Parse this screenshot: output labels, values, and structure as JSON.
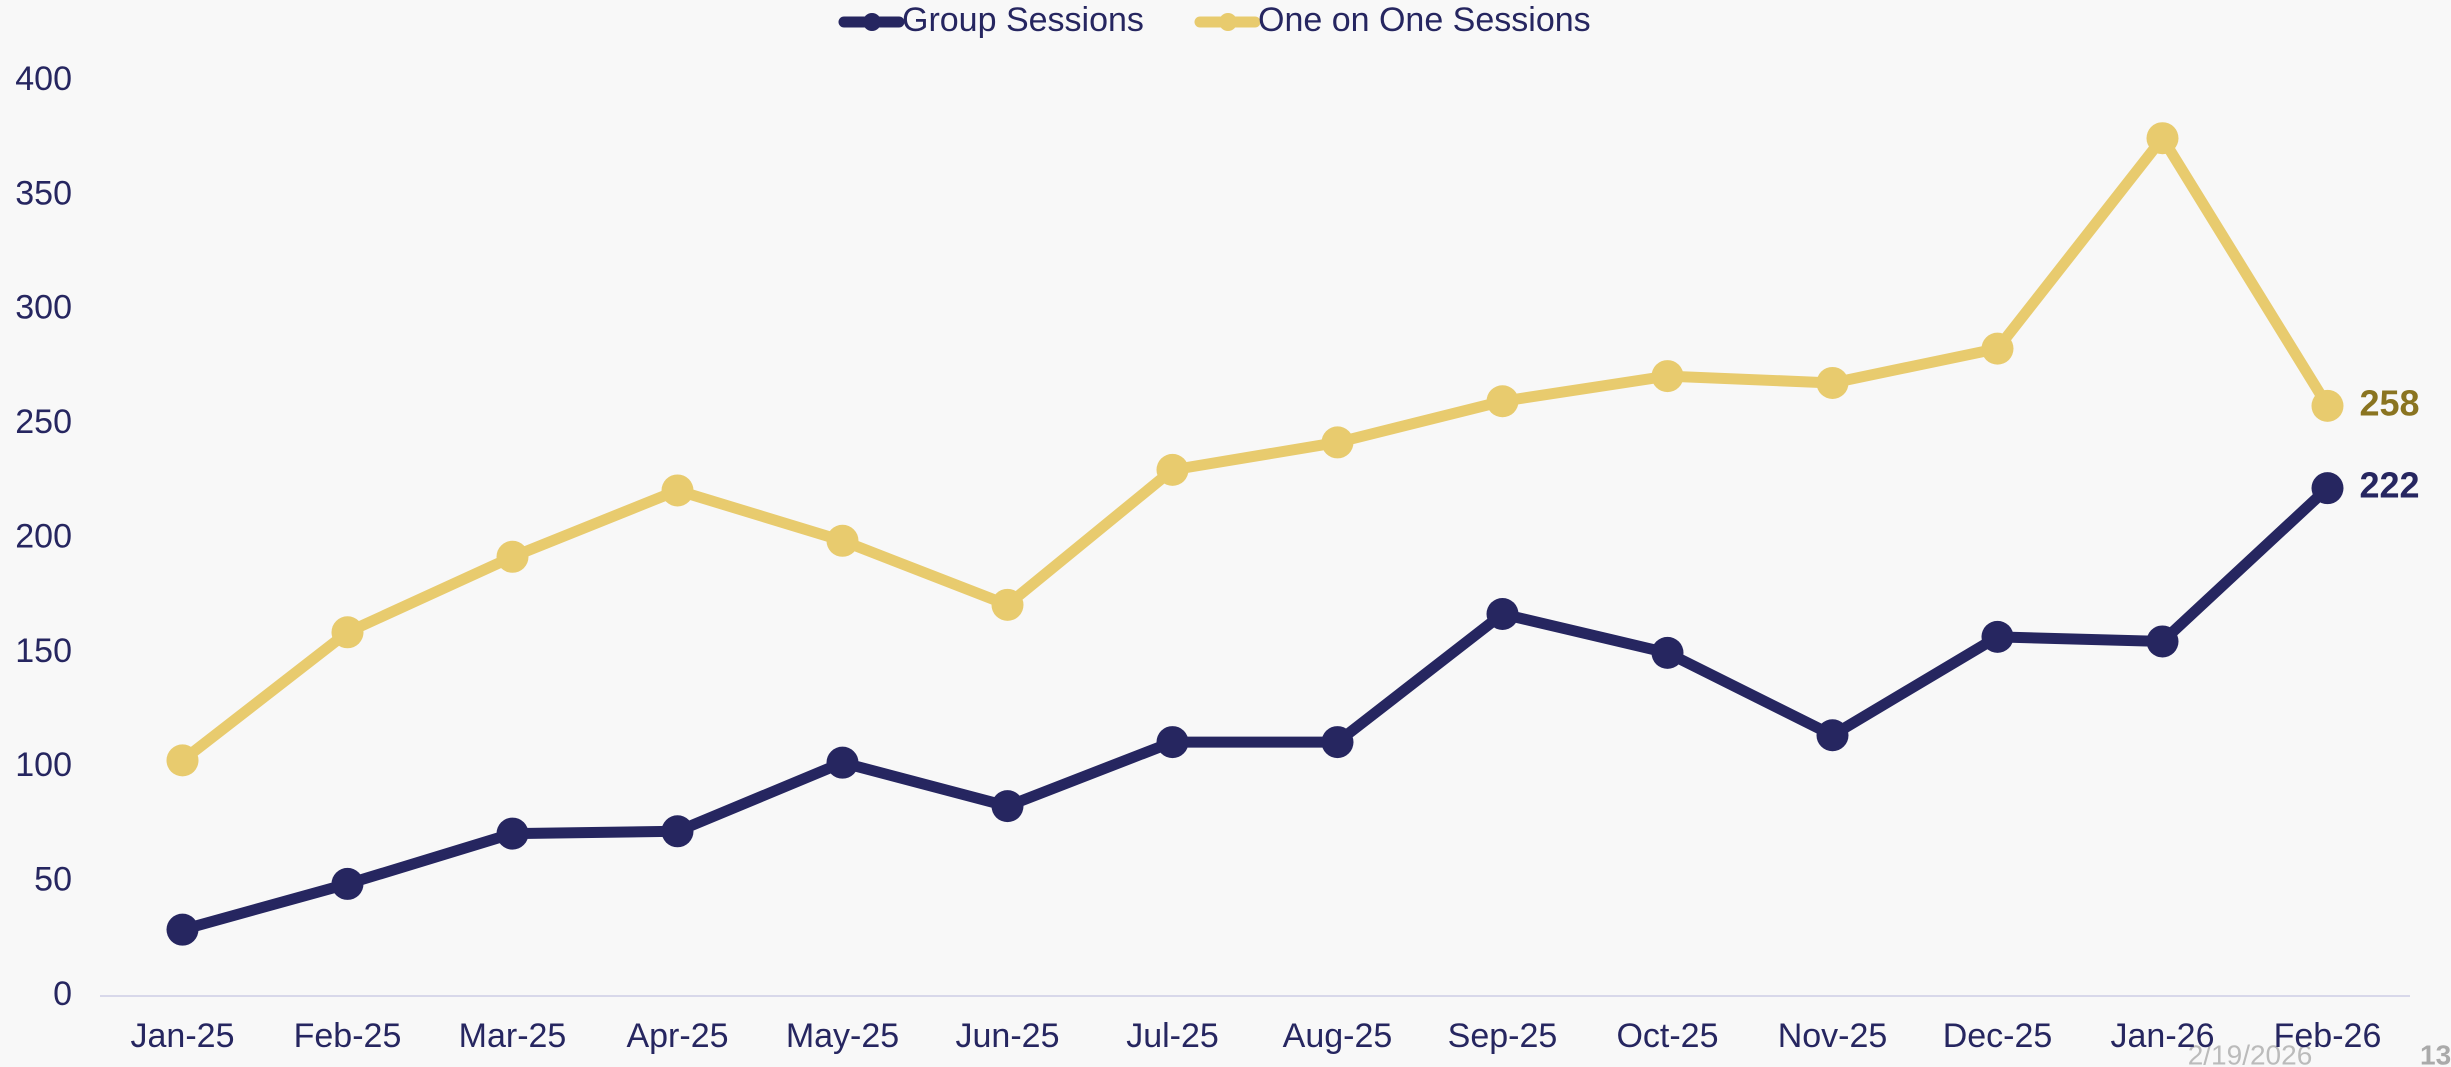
{
  "chart_data": {
    "type": "line",
    "categories": [
      "Jan-25",
      "Feb-25",
      "Mar-25",
      "Apr-25",
      "May-25",
      "Jun-25",
      "Jul-25",
      "Aug-25",
      "Sep-25",
      "Oct-25",
      "Nov-25",
      "Dec-25",
      "Jan-26",
      "Feb-26"
    ],
    "series": [
      {
        "name": "Group Sessions",
        "color": "#262660",
        "label_color": "#262660",
        "values": [
          29,
          49,
          71,
          72,
          102,
          83,
          111,
          111,
          167,
          150,
          114,
          157,
          155,
          222
        ]
      },
      {
        "name": "One on One Sessions",
        "color": "#e8cb6e",
        "label_color": "#8a7420",
        "values": [
          103,
          159,
          192,
          221,
          199,
          171,
          230,
          242,
          260,
          271,
          268,
          283,
          375,
          258
        ]
      }
    ],
    "ylim": [
      0,
      400
    ],
    "yticks": [
      0,
      50,
      100,
      150,
      200,
      250,
      300,
      350,
      400
    ],
    "grid": false,
    "legend": "top",
    "footer": {
      "date": "2/19/2026",
      "page": "13"
    }
  }
}
